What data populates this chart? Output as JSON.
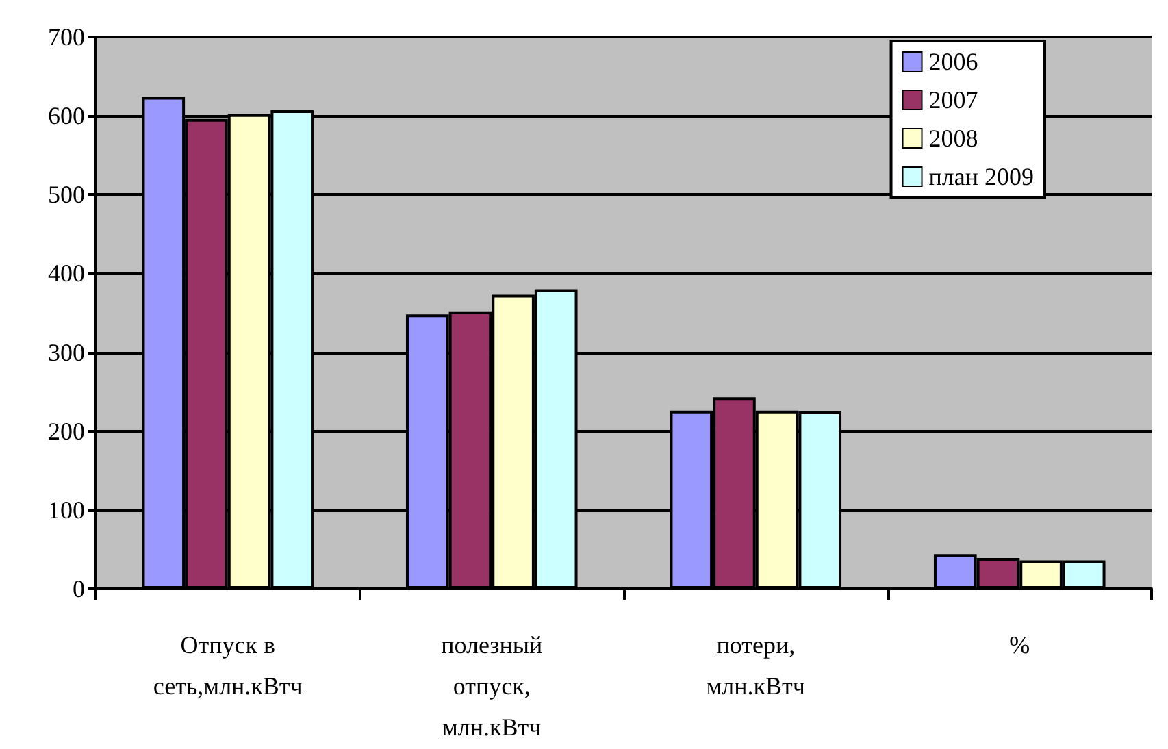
{
  "chart_data": {
    "type": "bar",
    "categories": [
      "Отпуск в сеть,млн.кВтч",
      "полезный отпуск, млн.кВтч",
      "потери, млн.кВтч",
      "%"
    ],
    "series": [
      {
        "name": "2006",
        "color": "#9999ff",
        "values": [
          624,
          348,
          226,
          44
        ]
      },
      {
        "name": "2007",
        "color": "#993366",
        "values": [
          596,
          352,
          243,
          39
        ]
      },
      {
        "name": "2008",
        "color": "#ffffcc",
        "values": [
          602,
          373,
          226,
          36
        ]
      },
      {
        "name": "план 2009",
        "color": "#ccffff",
        "values": [
          607,
          380,
          225,
          36
        ]
      }
    ],
    "ylim": [
      0,
      700
    ],
    "yticks": [
      0,
      100,
      200,
      300,
      400,
      500,
      600,
      700
    ],
    "grid": "y",
    "legend": "top right"
  }
}
